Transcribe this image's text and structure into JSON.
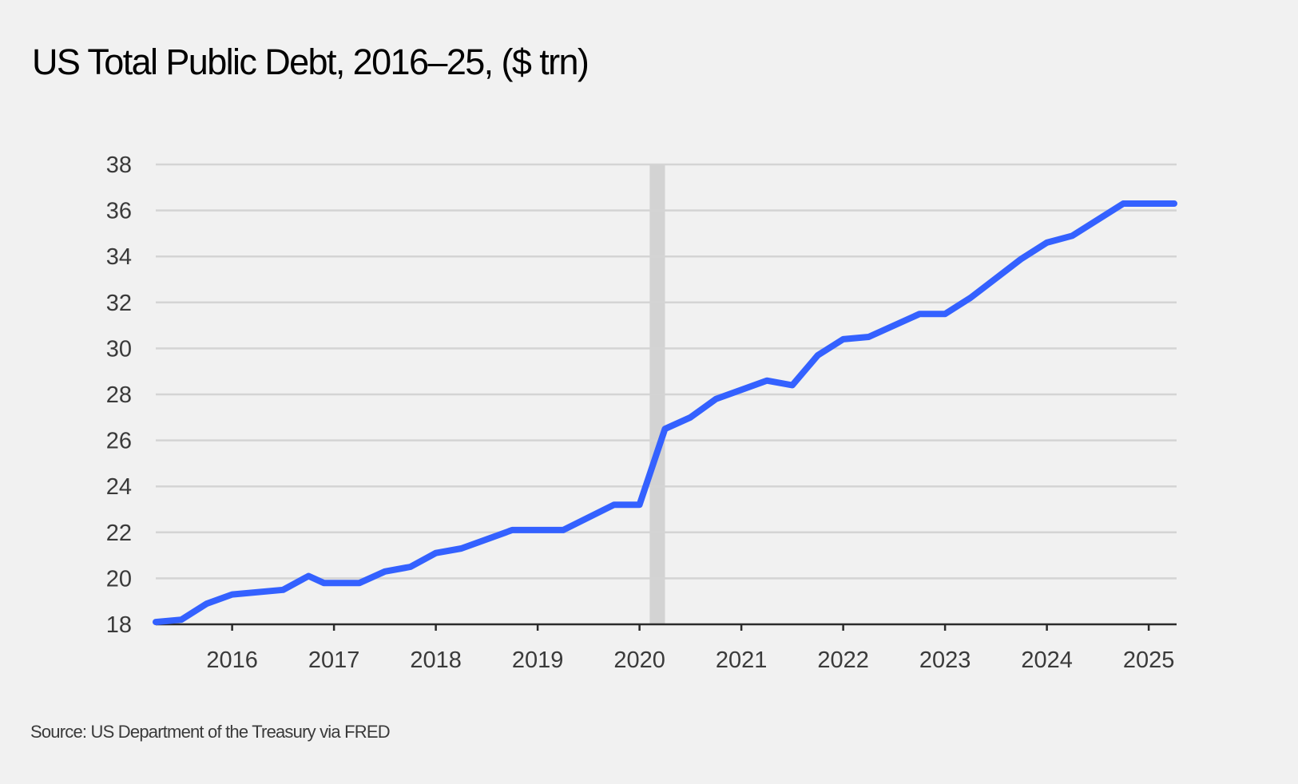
{
  "title": "US Total Public Debt, 2016–25, ($ trn)",
  "source": "Source: US Department of the Treasury via FRED",
  "colors": {
    "line": "#3461ff",
    "grid": "#d4d4d4",
    "axis": "#2b2b2b",
    "recession_band": "#d3d3d3",
    "background": "#f1f1f1"
  },
  "chart_data": {
    "type": "line",
    "title": "US Total Public Debt, 2016–25, ($ trn)",
    "xlabel": "",
    "ylabel": "",
    "xlim": [
      2015.25,
      2025.25
    ],
    "ylim": [
      18,
      38
    ],
    "y_ticks": [
      18,
      20,
      22,
      24,
      26,
      28,
      30,
      32,
      34,
      36,
      38
    ],
    "x_ticks": [
      2016,
      2017,
      2018,
      2019,
      2020,
      2021,
      2022,
      2023,
      2024,
      2025
    ],
    "x_tick_labels": [
      "2016",
      "2017",
      "2018",
      "2019",
      "2020",
      "2021",
      "2022",
      "2023",
      "2024",
      "2025"
    ],
    "y_tick_labels": [
      "18",
      "20",
      "22",
      "24",
      "26",
      "28",
      "30",
      "32",
      "34",
      "36",
      "38"
    ],
    "grid": "horizontal",
    "shaded_band": {
      "x_start": 2020.1,
      "x_end": 2020.25
    },
    "series": [
      {
        "x": [
          2015.25,
          2015.5,
          2015.75,
          2016.0,
          2016.5,
          2016.75,
          2016.9,
          2017.25,
          2017.5,
          2017.75,
          2018.0,
          2018.25,
          2018.75,
          2019.25,
          2019.75,
          2020.0,
          2020.25,
          2020.5,
          2020.75,
          2021.25,
          2021.5,
          2021.75,
          2022.0,
          2022.25,
          2022.75,
          2023.0,
          2023.25,
          2023.75,
          2024.0,
          2024.25,
          2024.75,
          2025.25
        ],
        "y": [
          18.1,
          18.2,
          18.9,
          19.3,
          19.5,
          20.1,
          19.8,
          19.8,
          20.3,
          20.5,
          21.1,
          21.3,
          22.1,
          22.1,
          23.2,
          23.2,
          26.5,
          27.0,
          27.8,
          28.6,
          28.4,
          29.7,
          30.4,
          30.5,
          31.5,
          31.5,
          32.2,
          33.9,
          34.6,
          34.9,
          36.3,
          36.3
        ]
      }
    ]
  }
}
